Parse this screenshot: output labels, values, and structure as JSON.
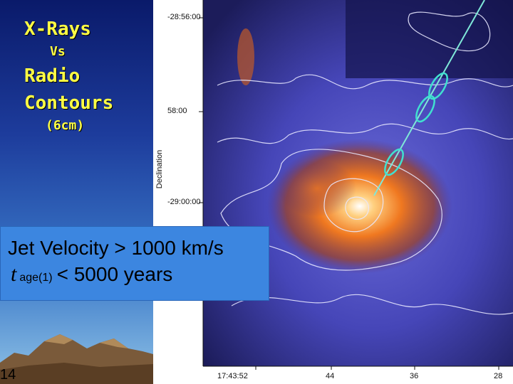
{
  "slide": {
    "title_line1": "X-Rays",
    "title_line2": "Vs",
    "title_line3": "Radio",
    "title_line4": "Contours",
    "title_line5": "(6cm)",
    "number": "14"
  },
  "plot": {
    "y_label": "Declination",
    "y_ticks": [
      "-28:56:00",
      "58:00",
      "-29:00:00"
    ],
    "x_ticks": [
      "17:43:52",
      "44",
      "36",
      "28"
    ]
  },
  "info": {
    "line1": "Jet Velocity  > 1000 km/s",
    "symbol": "t",
    "subscript": "age(1)",
    "line2_value": "< 5000 years"
  }
}
